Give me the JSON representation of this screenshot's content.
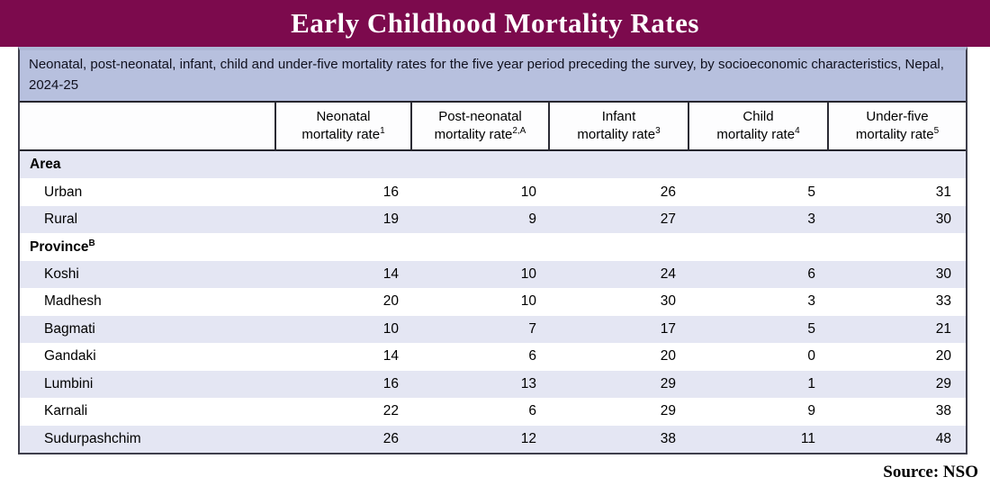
{
  "title": "Early Childhood Mortality Rates",
  "source_label": "Source: NSO",
  "colors": {
    "title_bar": "#7c0a4d",
    "caption_bg": "#b7c0de",
    "stripe_bg": "#e4e6f3",
    "border": "#26262e"
  },
  "chart_data": {
    "type": "table",
    "title": "Early Childhood Mortality Rates",
    "caption": "Neonatal, post-neonatal, infant, child and under-five mortality rates for the five year period preceding the survey, by socioeconomic characteristics, Nepal, 2024-25",
    "columns": [
      {
        "line1": "Neonatal",
        "line2": "mortality rate",
        "sup": "1"
      },
      {
        "line1": "Post-neonatal",
        "line2": "mortality rate",
        "sup": "2,A"
      },
      {
        "line1": "Infant",
        "line2": "mortality rate",
        "sup": "3"
      },
      {
        "line1": "Child",
        "line2": "mortality rate",
        "sup": "4"
      },
      {
        "line1": "Under-five",
        "line2": "mortality rate",
        "sup": "5"
      }
    ],
    "rows": [
      {
        "type": "section",
        "label": "Area",
        "sup": ""
      },
      {
        "type": "data",
        "label": "Urban",
        "values": [
          16,
          10,
          26,
          5,
          31
        ]
      },
      {
        "type": "data",
        "label": "Rural",
        "values": [
          19,
          9,
          27,
          3,
          30
        ]
      },
      {
        "type": "section",
        "label": "Province",
        "sup": "B"
      },
      {
        "type": "data",
        "label": "Koshi",
        "values": [
          14,
          10,
          24,
          6,
          30
        ]
      },
      {
        "type": "data",
        "label": "Madhesh",
        "values": [
          20,
          10,
          30,
          3,
          33
        ]
      },
      {
        "type": "data",
        "label": "Bagmati",
        "values": [
          10,
          7,
          17,
          5,
          21
        ]
      },
      {
        "type": "data",
        "label": "Gandaki",
        "values": [
          14,
          6,
          20,
          0,
          20
        ]
      },
      {
        "type": "data",
        "label": "Lumbini",
        "values": [
          16,
          13,
          29,
          1,
          29
        ]
      },
      {
        "type": "data",
        "label": "Karnali",
        "values": [
          22,
          6,
          29,
          9,
          38
        ]
      },
      {
        "type": "data",
        "label": "Sudurpashchim",
        "values": [
          26,
          12,
          38,
          11,
          48
        ]
      }
    ],
    "source": "NSO"
  }
}
